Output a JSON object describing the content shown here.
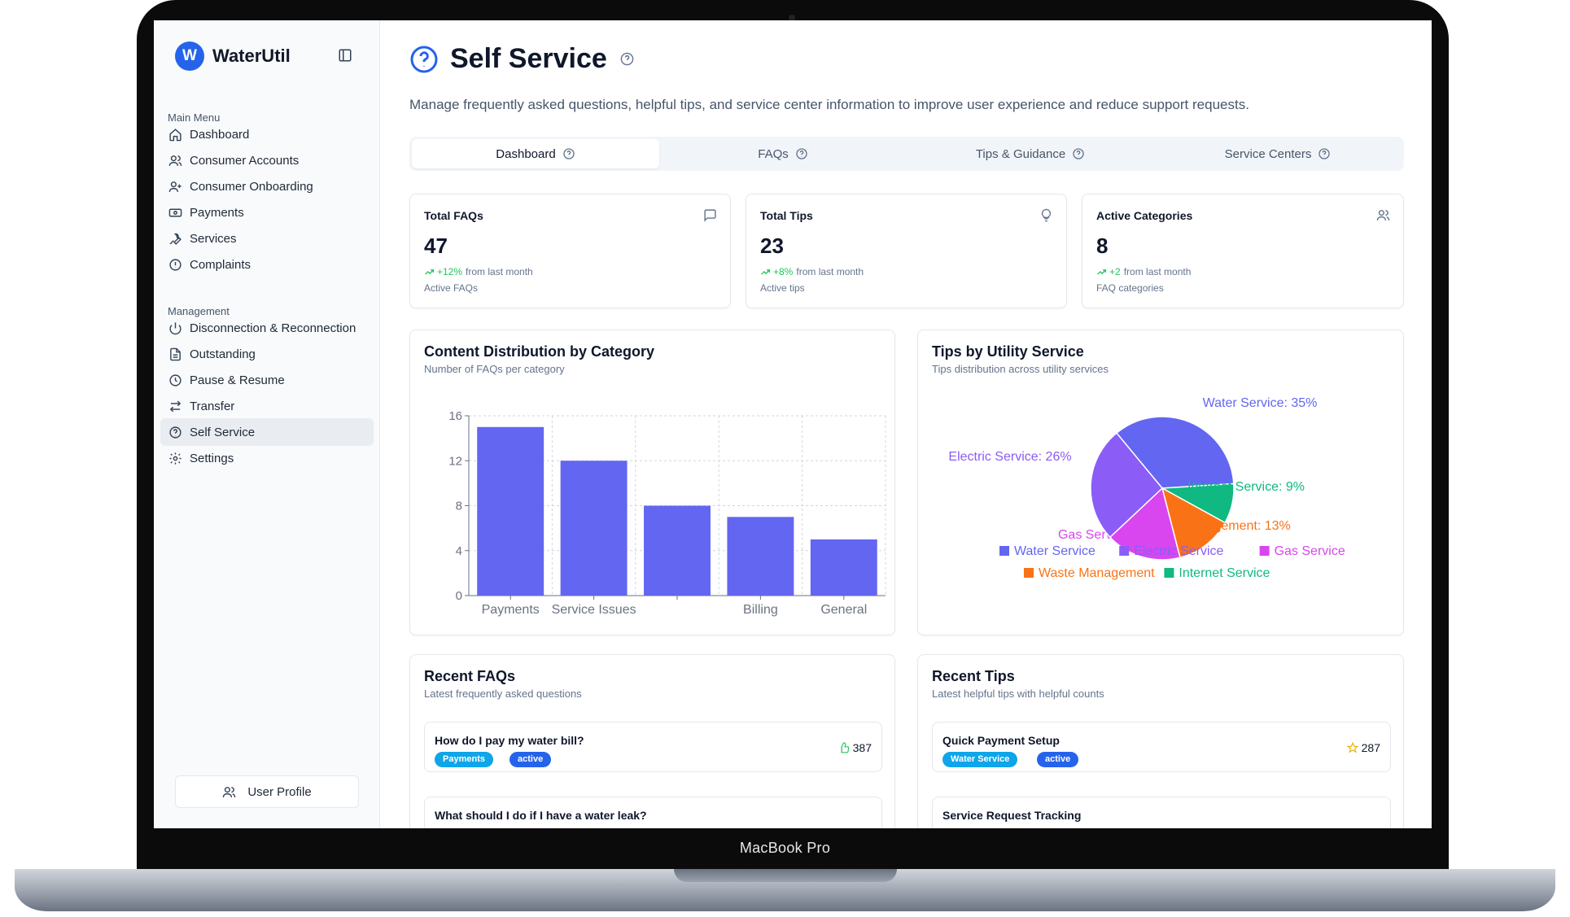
{
  "device": {
    "caption": "MacBook Pro"
  },
  "sidebar": {
    "brand_initial": "W",
    "brand_name": "WaterUtil",
    "main_menu_label": "Main Menu",
    "main_items": [
      {
        "label": "Dashboard",
        "icon": "home-icon"
      },
      {
        "label": "Consumer Accounts",
        "icon": "users-icon"
      },
      {
        "label": "Consumer Onboarding",
        "icon": "user-plus-icon"
      },
      {
        "label": "Payments",
        "icon": "banknote-icon"
      },
      {
        "label": "Services",
        "icon": "wrench-icon"
      },
      {
        "label": "Complaints",
        "icon": "alert-circle-icon"
      }
    ],
    "management_label": "Management",
    "management_items": [
      {
        "label": "Disconnection & Reconnection",
        "icon": "power-icon"
      },
      {
        "label": "Outstanding",
        "icon": "file-text-icon"
      },
      {
        "label": "Pause & Resume",
        "icon": "clock-icon"
      },
      {
        "label": "Transfer",
        "icon": "arrows-icon"
      },
      {
        "label": "Self Service",
        "icon": "help-circle-icon",
        "active": true
      },
      {
        "label": "Settings",
        "icon": "gear-icon"
      }
    ],
    "user_profile_label": "User Profile"
  },
  "header": {
    "title": "Self Service",
    "description": "Manage frequently asked questions, helpful tips, and service center information to improve user experience and reduce support requests."
  },
  "tabs": [
    {
      "label": "Dashboard",
      "active": true
    },
    {
      "label": "FAQs"
    },
    {
      "label": "Tips & Guidance"
    },
    {
      "label": "Service Centers"
    }
  ],
  "stats": [
    {
      "title": "Total FAQs",
      "value": "47",
      "trend": "+12%",
      "trend_text": "from last month",
      "sub": "Active FAQs",
      "icon": "message-square-icon"
    },
    {
      "title": "Total Tips",
      "value": "23",
      "trend": "+8%",
      "trend_text": "from last month",
      "sub": "Active tips",
      "icon": "lightbulb-icon"
    },
    {
      "title": "Active Categories",
      "value": "8",
      "trend": "+2",
      "trend_text": "from last month",
      "sub": "FAQ categories",
      "icon": "users-icon"
    }
  ],
  "bar_card": {
    "title": "Content Distribution by Category",
    "subtitle": "Number of FAQs per category"
  },
  "pie_card": {
    "title": "Tips by Utility Service",
    "subtitle": "Tips distribution across utility services"
  },
  "chart_data": [
    {
      "type": "bar",
      "categories": [
        "Payments",
        "Service Issues",
        "",
        "Billing",
        "General"
      ],
      "values": [
        15,
        12,
        8,
        7,
        5
      ],
      "ylim": [
        0,
        16
      ],
      "yticks": [
        0,
        4,
        8,
        12,
        16
      ],
      "color": "#6366f1",
      "grid": true
    },
    {
      "type": "pie",
      "slices": [
        {
          "name": "Water Service",
          "label": "Water Service: 35%",
          "value": 35,
          "color": "#6366f1"
        },
        {
          "name": "Internet Service",
          "label": "Internet Service: 9%",
          "value": 9,
          "color": "#10b981"
        },
        {
          "name": "Waste Management",
          "label": "Waste Management: 13%",
          "value": 13,
          "color": "#f97316"
        },
        {
          "name": "Gas Service",
          "label": "Gas Service: 17%",
          "value": 17,
          "color": "#d946ef"
        },
        {
          "name": "Electric Service",
          "label": "Electric Service: 26%",
          "value": 26,
          "color": "#8b5cf6"
        }
      ],
      "legend_order": [
        "Water Service",
        "Electric Service",
        "Gas Service",
        "Waste Management",
        "Internet Service"
      ],
      "legend_placement": "bottom"
    }
  ],
  "recent_faqs": {
    "title": "Recent FAQs",
    "subtitle": "Latest frequently asked questions",
    "items": [
      {
        "title": "How do I pay my water bill?",
        "category": "Payments",
        "status": "active",
        "count": "387"
      },
      {
        "title": "What should I do if I have a water leak?"
      }
    ]
  },
  "recent_tips": {
    "title": "Recent Tips",
    "subtitle": "Latest helpful tips with helpful counts",
    "items": [
      {
        "title": "Quick Payment Setup",
        "category": "Water Service",
        "status": "active",
        "count": "287"
      },
      {
        "title": "Service Request Tracking"
      }
    ]
  }
}
